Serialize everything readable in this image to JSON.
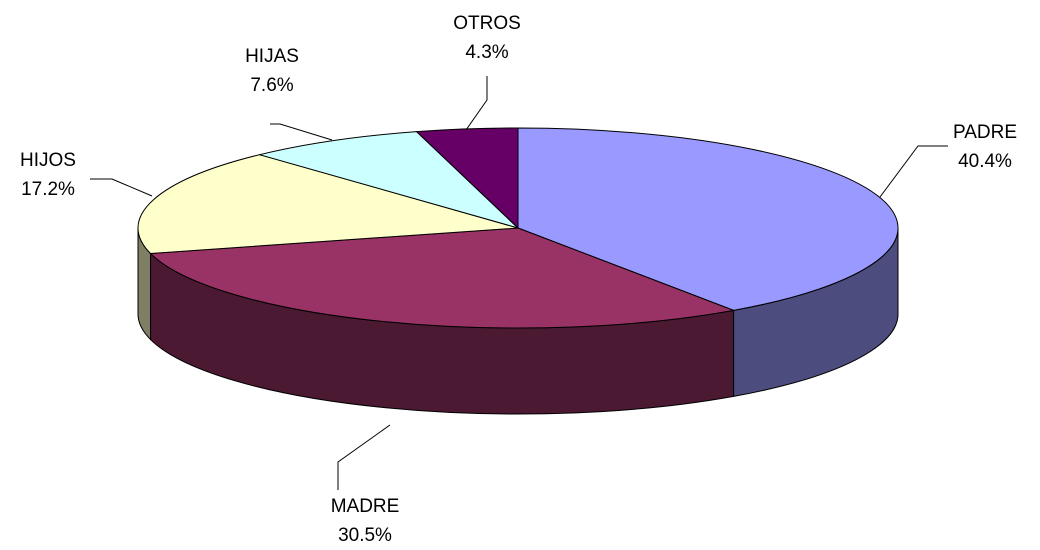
{
  "chart_data": {
    "type": "pie3d",
    "categories": [
      "PADRE",
      "MADRE",
      "HIJOS",
      "HIJAS",
      "OTROS"
    ],
    "values": [
      40.4,
      30.5,
      17.2,
      7.6,
      4.3
    ],
    "value_labels": [
      "40.4%",
      "30.5%",
      "17.2%",
      "7.6%",
      "4.3%"
    ],
    "colors": [
      "#9999ff",
      "#993366",
      "#ffffcc",
      "#ccffff",
      "#660066"
    ]
  }
}
